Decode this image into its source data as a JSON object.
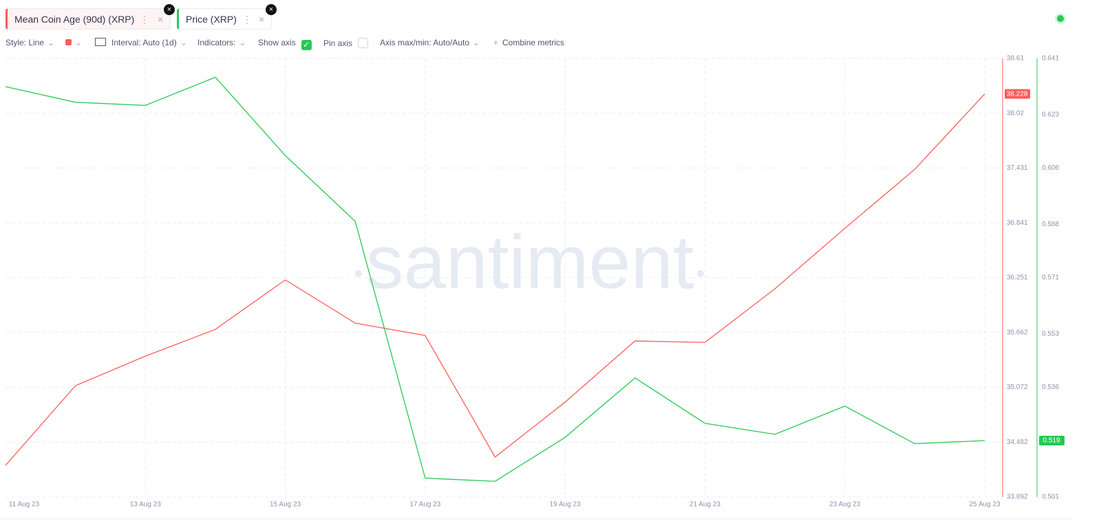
{
  "chart_data": {
    "type": "line",
    "categories": [
      "11 Aug 23",
      null,
      "13 Aug 23",
      null,
      "15 Aug 23",
      null,
      "17 Aug 23",
      null,
      "19 Aug 23",
      null,
      "21 Aug 23",
      null,
      "23 Aug 23",
      null,
      "25 Aug 23"
    ],
    "series": [
      {
        "name": "Mean Coin Age (90d) (XRP)",
        "color": "#ff5b5b",
        "values": [
          34.232,
          35.089,
          35.407,
          35.695,
          36.227,
          35.762,
          35.629,
          34.321,
          34.912,
          35.57,
          35.555,
          36.131,
          36.782,
          37.417,
          38.228
        ]
      },
      {
        "name": "Price (XRP)",
        "color": "#26c953",
        "axis": "y2",
        "values": [
          0.632,
          0.627,
          0.626,
          0.635,
          0.61,
          0.589,
          0.507,
          0.506,
          0.52,
          0.539,
          0.5245,
          0.521,
          0.53,
          0.518,
          0.519
        ]
      }
    ],
    "ylim": [
      33.892,
      38.61
    ],
    "yticks": [
      33.892,
      34.482,
      35.072,
      35.662,
      36.251,
      36.841,
      37.431,
      38.02,
      38.61
    ],
    "y2lim": [
      0.501,
      0.641
    ],
    "y2ticks": [
      0.501,
      0.518,
      0.536,
      0.553,
      0.571,
      0.588,
      0.606,
      0.623,
      0.641
    ],
    "grid": true
  },
  "toolbar": {
    "style": "Style: Line",
    "interval": "Interval: Auto (1d)",
    "indicators": "Indicators:",
    "show_axis": "Show axis",
    "pin_axis": "Pin axis",
    "axis_maxmin": "Axis max/min: Auto/Auto",
    "combine": "Combine metrics"
  },
  "watermark": "santiment"
}
